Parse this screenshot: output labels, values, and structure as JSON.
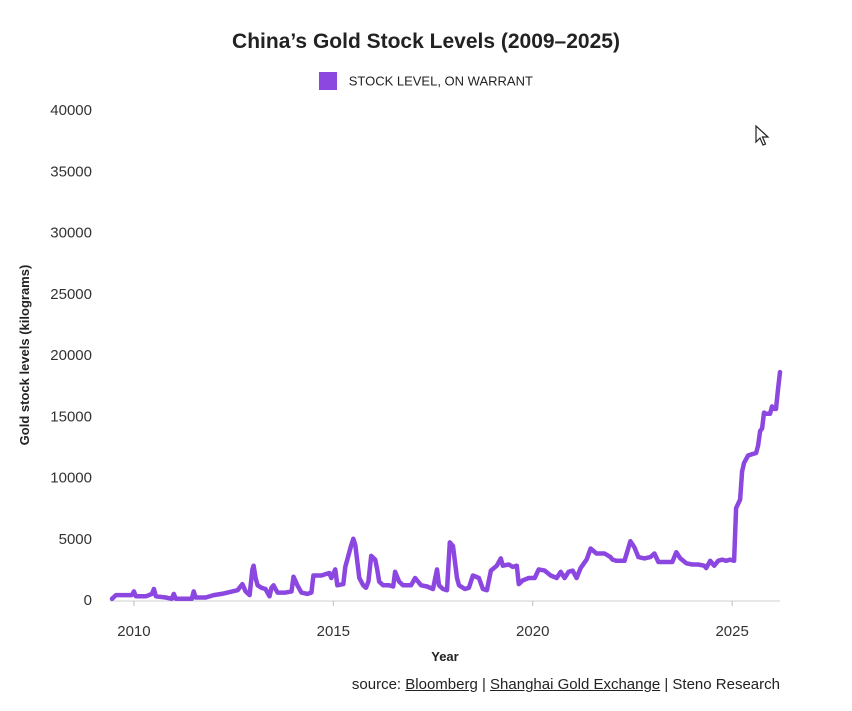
{
  "chart_data": {
    "type": "line",
    "title": "China’s Gold Stock Levels (2009–2025)",
    "xlabel": "Year",
    "ylabel": "Gold stock levels (kilograms)",
    "xlim": [
      2009.4,
      2026.2
    ],
    "ylim": [
      0,
      40000
    ],
    "x_ticks": [
      2010,
      2015,
      2020,
      2025
    ],
    "y_ticks": [
      0,
      5000,
      10000,
      15000,
      20000,
      25000,
      30000,
      35000,
      40000
    ],
    "grid": false,
    "legend_position": "top-center",
    "series": [
      {
        "name": "STOCK LEVEL, ON WARRANT",
        "color": "#8b47e0",
        "points": [
          [
            2009.45,
            100
          ],
          [
            2009.55,
            400
          ],
          [
            2009.8,
            400
          ],
          [
            2009.95,
            400
          ],
          [
            2010.0,
            700
          ],
          [
            2010.05,
            300
          ],
          [
            2010.3,
            300
          ],
          [
            2010.45,
            500
          ],
          [
            2010.5,
            900
          ],
          [
            2010.55,
            300
          ],
          [
            2010.8,
            200
          ],
          [
            2010.95,
            100
          ],
          [
            2011.0,
            500
          ],
          [
            2011.05,
            100
          ],
          [
            2011.3,
            100
          ],
          [
            2011.45,
            100
          ],
          [
            2011.5,
            700
          ],
          [
            2011.55,
            200
          ],
          [
            2011.8,
            200
          ],
          [
            2012.0,
            400
          ],
          [
            2012.2,
            500
          ],
          [
            2012.35,
            600
          ],
          [
            2012.6,
            800
          ],
          [
            2012.72,
            1300
          ],
          [
            2012.8,
            700
          ],
          [
            2012.9,
            400
          ],
          [
            2012.97,
            2500
          ],
          [
            2013.0,
            2800
          ],
          [
            2013.05,
            1800
          ],
          [
            2013.1,
            1200
          ],
          [
            2013.2,
            1000
          ],
          [
            2013.3,
            900
          ],
          [
            2013.4,
            300
          ],
          [
            2013.45,
            1000
          ],
          [
            2013.5,
            1200
          ],
          [
            2013.6,
            600
          ],
          [
            2013.8,
            600
          ],
          [
            2013.95,
            700
          ],
          [
            2014.0,
            1900
          ],
          [
            2014.1,
            1200
          ],
          [
            2014.2,
            600
          ],
          [
            2014.35,
            500
          ],
          [
            2014.45,
            600
          ],
          [
            2014.5,
            2000
          ],
          [
            2014.7,
            2000
          ],
          [
            2014.9,
            2200
          ],
          [
            2014.95,
            1800
          ],
          [
            2015.05,
            2500
          ],
          [
            2015.1,
            1200
          ],
          [
            2015.25,
            1300
          ],
          [
            2015.3,
            2700
          ],
          [
            2015.45,
            4500
          ],
          [
            2015.5,
            5000
          ],
          [
            2015.55,
            4500
          ],
          [
            2015.65,
            1800
          ],
          [
            2015.75,
            1200
          ],
          [
            2015.82,
            1000
          ],
          [
            2015.88,
            1500
          ],
          [
            2015.95,
            3600
          ],
          [
            2016.05,
            3300
          ],
          [
            2016.1,
            2500
          ],
          [
            2016.15,
            1500
          ],
          [
            2016.25,
            1200
          ],
          [
            2016.4,
            1200
          ],
          [
            2016.5,
            1100
          ],
          [
            2016.55,
            2300
          ],
          [
            2016.65,
            1500
          ],
          [
            2016.75,
            1200
          ],
          [
            2016.95,
            1200
          ],
          [
            2017.05,
            1800
          ],
          [
            2017.2,
            1200
          ],
          [
            2017.35,
            1100
          ],
          [
            2017.5,
            900
          ],
          [
            2017.6,
            2500
          ],
          [
            2017.65,
            1200
          ],
          [
            2017.75,
            900
          ],
          [
            2017.85,
            800
          ],
          [
            2017.92,
            4700
          ],
          [
            2018.0,
            4400
          ],
          [
            2018.1,
            1800
          ],
          [
            2018.15,
            1200
          ],
          [
            2018.3,
            900
          ],
          [
            2018.4,
            1000
          ],
          [
            2018.5,
            2000
          ],
          [
            2018.65,
            1800
          ],
          [
            2018.75,
            900
          ],
          [
            2018.85,
            800
          ],
          [
            2018.95,
            2400
          ],
          [
            2019.1,
            2800
          ],
          [
            2019.2,
            3400
          ],
          [
            2019.25,
            2800
          ],
          [
            2019.4,
            2900
          ],
          [
            2019.5,
            2700
          ],
          [
            2019.6,
            2800
          ],
          [
            2019.65,
            1300
          ],
          [
            2019.75,
            1600
          ],
          [
            2019.9,
            1800
          ],
          [
            2020.05,
            1800
          ],
          [
            2020.15,
            2500
          ],
          [
            2020.3,
            2400
          ],
          [
            2020.45,
            2000
          ],
          [
            2020.6,
            1800
          ],
          [
            2020.7,
            2300
          ],
          [
            2020.8,
            1800
          ],
          [
            2020.9,
            2300
          ],
          [
            2021.0,
            2400
          ],
          [
            2021.1,
            1800
          ],
          [
            2021.2,
            2600
          ],
          [
            2021.35,
            3300
          ],
          [
            2021.45,
            4200
          ],
          [
            2021.6,
            3800
          ],
          [
            2021.8,
            3800
          ],
          [
            2021.95,
            3500
          ],
          [
            2022.0,
            3300
          ],
          [
            2022.1,
            3200
          ],
          [
            2022.3,
            3200
          ],
          [
            2022.45,
            4800
          ],
          [
            2022.55,
            4300
          ],
          [
            2022.65,
            3500
          ],
          [
            2022.8,
            3400
          ],
          [
            2022.95,
            3500
          ],
          [
            2023.05,
            3800
          ],
          [
            2023.15,
            3100
          ],
          [
            2023.35,
            3100
          ],
          [
            2023.5,
            3100
          ],
          [
            2023.6,
            3900
          ],
          [
            2023.7,
            3400
          ],
          [
            2023.85,
            3000
          ],
          [
            2024.0,
            2900
          ],
          [
            2024.15,
            2900
          ],
          [
            2024.3,
            2800
          ],
          [
            2024.35,
            2600
          ],
          [
            2024.45,
            3200
          ],
          [
            2024.55,
            2800
          ],
          [
            2024.65,
            3200
          ],
          [
            2024.75,
            3300
          ],
          [
            2024.85,
            3200
          ],
          [
            2024.95,
            3300
          ],
          [
            2025.05,
            3200
          ],
          [
            2025.1,
            7500
          ],
          [
            2025.2,
            8200
          ],
          [
            2025.25,
            10500
          ],
          [
            2025.3,
            11200
          ],
          [
            2025.4,
            11800
          ],
          [
            2025.5,
            11900
          ],
          [
            2025.6,
            12000
          ],
          [
            2025.65,
            12600
          ],
          [
            2025.7,
            13800
          ],
          [
            2025.75,
            14000
          ],
          [
            2025.8,
            15300
          ],
          [
            2025.85,
            15200
          ],
          [
            2025.95,
            15200
          ],
          [
            2026.0,
            15800
          ],
          [
            2026.05,
            15600
          ],
          [
            2026.1,
            15600
          ],
          [
            2026.15,
            17200
          ],
          [
            2026.2,
            18600
          ]
        ]
      }
    ]
  },
  "source": {
    "prefix": "source: ",
    "name_1": "Bloomberg",
    "sep_1": " | ",
    "name_2": "Shanghai Gold Exchange",
    "sep_2": " | ",
    "name_3": "Steno Research"
  },
  "cursor_icon": "mouse-pointer-icon"
}
